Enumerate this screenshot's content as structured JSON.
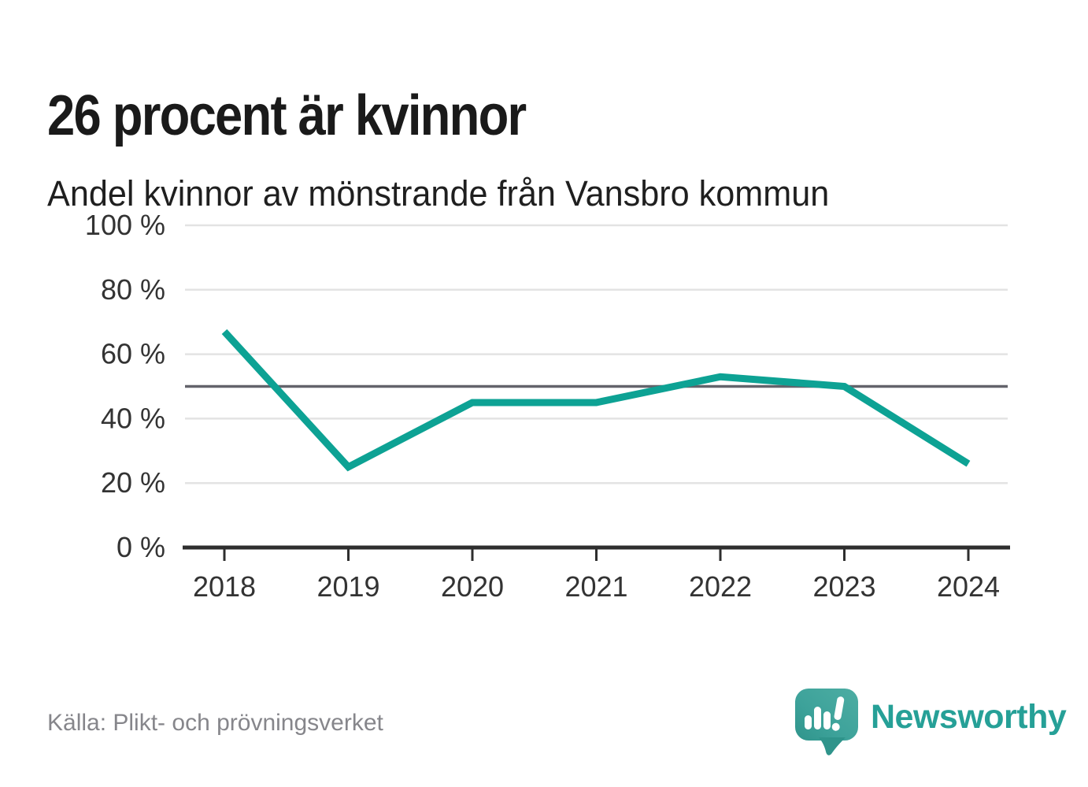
{
  "header": {
    "title": "26 procent är kvinnor",
    "subtitle": "Andel kvinnor av mönstrande från Vansbro kommun"
  },
  "chart_data": {
    "type": "line",
    "title": "26 procent är kvinnor",
    "subtitle": "Andel kvinnor av mönstrande från Vansbro kommun",
    "series_label": "Andel kvinnor av mönstrande",
    "x": [
      "2018",
      "2019",
      "2020",
      "2021",
      "2022",
      "2023",
      "2024"
    ],
    "values": [
      67,
      25,
      45,
      45,
      53,
      50,
      26
    ],
    "ylim": [
      0,
      100
    ],
    "yticks": [
      0,
      20,
      40,
      60,
      80,
      100
    ],
    "ytick_suffix": " %",
    "reference_line": 50,
    "grid": true,
    "legend": false,
    "colors": {
      "line": "#0DA294",
      "grid": "#E3E3E3",
      "reference": "#63636B",
      "axis": "#2E2E2E",
      "tick_label": "#333333"
    }
  },
  "footer": {
    "source": "Källa: Plikt- och prövningsverket",
    "brand": "Newsworthy",
    "brand_color": "#26A097",
    "brand_icon": "newsworthy-speech-bubble-barchart-icon"
  }
}
